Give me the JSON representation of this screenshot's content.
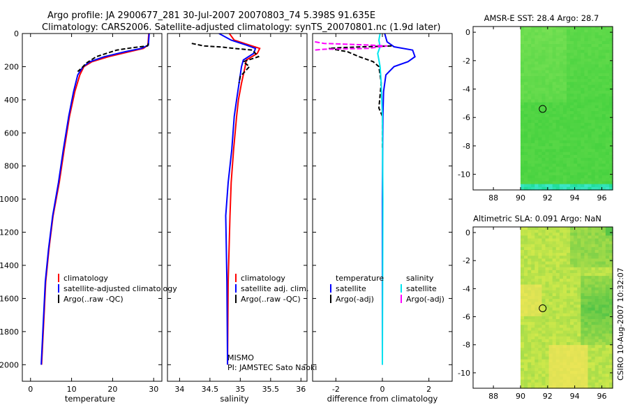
{
  "header": {
    "line1": "Argo profile: JA 2900677_281 30-Jul-2007 20070803_74 5.398S 91.635E",
    "line2": "Climatology: CARS2006. Satellite-adjusted climatology: synTS_20070801.nc (1.9d later)"
  },
  "credit": "CSIRO 10-Aug-2007 10:32:07",
  "colors": {
    "clim": "#ff0000",
    "sat": "#0000ff",
    "argo": "#000000",
    "sal_sat": "#00e5ee",
    "sal_argo": "#ff00ff"
  },
  "chart_data": [
    {
      "type": "line",
      "name": "temperature-profile",
      "xlabel": "temperature",
      "xlim": [
        -2,
        32
      ],
      "ylim": [
        0,
        2100
      ],
      "xticks": [
        0,
        10,
        20,
        30
      ],
      "yticks": [
        0,
        200,
        400,
        600,
        800,
        1000,
        1200,
        1400,
        1600,
        1800,
        2000
      ],
      "legend": [
        "climatology",
        "satellite-adjusted climatology",
        "Argo(..raw -QC)"
      ],
      "series": [
        {
          "name": "climatology",
          "color": "#ff0000",
          "x": [
            28.8,
            28.6,
            27.5,
            24,
            19,
            15,
            13,
            12,
            10.8,
            9.5,
            8.2,
            7,
            5.5,
            4.5,
            3.7,
            3.1,
            2.7
          ],
          "y": [
            0,
            70,
            90,
            110,
            140,
            170,
            200,
            250,
            350,
            500,
            700,
            900,
            1100,
            1300,
            1500,
            1800,
            2000
          ]
        },
        {
          "name": "satellite-adjusted climatology",
          "color": "#0000ff",
          "x": [
            28.9,
            28.7,
            27,
            23,
            18,
            14.5,
            12.8,
            11.5,
            10.5,
            9.3,
            8,
            6.8,
            5.4,
            4.4,
            3.6,
            3,
            2.6
          ],
          "y": [
            0,
            70,
            90,
            110,
            140,
            170,
            200,
            250,
            350,
            500,
            700,
            900,
            1100,
            1300,
            1500,
            1800,
            2000
          ]
        },
        {
          "name": "Argo(..raw -QC)",
          "color": "#000000",
          "x": [
            28.7,
            28.5,
            25,
            21,
            16,
            13.5,
            12.8,
            11.5
          ],
          "y": [
            60,
            75,
            85,
            100,
            140,
            180,
            200,
            230
          ]
        }
      ]
    },
    {
      "type": "line",
      "name": "salinity-profile",
      "xlabel": "salinity",
      "xlim": [
        33.8,
        36.1
      ],
      "ylim": [
        0,
        2100
      ],
      "xticks": [
        34,
        34.5,
        35,
        35.5,
        36
      ],
      "legend": [
        "climatology",
        "satellite adj. clim.",
        "Argo(..raw -QC)"
      ],
      "annotation": [
        "MISMO",
        "PI: JAMSTEC Sato Naoki"
      ],
      "series": [
        {
          "name": "climatology",
          "color": "#ff0000",
          "x": [
            34.82,
            34.9,
            35.15,
            35.32,
            35.28,
            35.1,
            35.08,
            35.02,
            34.97,
            34.94,
            34.89,
            34.85,
            34.83,
            34.8,
            34.79
          ],
          "y": [
            0,
            40,
            70,
            90,
            120,
            160,
            200,
            300,
            400,
            500,
            700,
            900,
            1100,
            1500,
            2000
          ]
        },
        {
          "name": "satellite adj. clim.",
          "color": "#0000ff",
          "x": [
            34.65,
            34.85,
            35.1,
            35.25,
            35.22,
            35.05,
            35.02,
            34.98,
            34.94,
            34.9,
            34.86,
            34.8,
            34.76,
            34.78,
            34.79
          ],
          "y": [
            0,
            40,
            70,
            90,
            120,
            160,
            200,
            300,
            400,
            500,
            700,
            900,
            1100,
            1500,
            2000
          ]
        },
        {
          "name": "Argo(..raw -QC)",
          "color": "#000000",
          "x": [
            34.2,
            34.4,
            34.7,
            34.85,
            35.2,
            35.3,
            35.05,
            35.15,
            35.1,
            35.0,
            34.98
          ],
          "y": [
            60,
            75,
            82,
            88,
            100,
            140,
            170,
            200,
            220,
            260,
            300
          ]
        }
      ]
    },
    {
      "type": "line",
      "name": "difference-from-climatology",
      "xlabel": "difference from climatology",
      "xlim": [
        -3,
        3
      ],
      "ylim": [
        0,
        2100
      ],
      "xticks": [
        -2,
        0,
        2
      ],
      "legend": [
        "temperature",
        "satellite",
        "Argo(-adj)",
        "salinity",
        "satellite",
        "Argo(-adj)"
      ],
      "series": [
        {
          "name": "temperature satellite",
          "color": "#0000ff",
          "x": [
            0.1,
            0.2,
            0.5,
            1.3,
            1.4,
            1.1,
            0.5,
            0.15,
            0.05,
            0.02,
            0.0,
            0.0
          ],
          "y": [
            0,
            50,
            80,
            100,
            140,
            170,
            200,
            250,
            350,
            500,
            1000,
            2000
          ]
        },
        {
          "name": "temperature Argo(-adj)",
          "color": "#000000",
          "x": [
            0.4,
            -0.8,
            -1.8,
            -2.3,
            -1.5,
            -1.0,
            -0.4,
            -0.15,
            -0.1,
            -0.05,
            -0.15,
            0.0,
            0.0
          ],
          "y": [
            75,
            80,
            85,
            90,
            110,
            140,
            170,
            200,
            250,
            300,
            450,
            500,
            700
          ]
        },
        {
          "name": "salinity satellite",
          "color": "#00e5ee",
          "x": [
            -0.1,
            -0.15,
            -0.1,
            -0.2,
            -0.15,
            -0.1,
            -0.05,
            0.0,
            0.02,
            0.0
          ],
          "y": [
            0,
            40,
            80,
            120,
            160,
            200,
            300,
            500,
            1000,
            2000
          ]
        },
        {
          "name": "salinity Argo(-adj)",
          "color": "#ff00ff",
          "x": [
            -2.9,
            -2.5,
            -1.5,
            -0.5,
            0.2,
            -0.1,
            -0.6,
            -2.5,
            -2.9
          ],
          "y": [
            50,
            60,
            65,
            70,
            75,
            80,
            90,
            95,
            100
          ]
        }
      ]
    },
    {
      "type": "heatmap",
      "name": "amsre-sst-map",
      "title": "AMSR-E SST: 28.4 Argo: 28.7",
      "xlim": [
        86.5,
        96.8
      ],
      "ylim": [
        -11.1,
        0.4
      ],
      "xticks": [
        88,
        90,
        92,
        94,
        96
      ],
      "yticks": [
        0,
        -2,
        -4,
        -6,
        -8,
        -10
      ],
      "data_x_start": 90,
      "marker": {
        "lon": 91.635,
        "lat": -5.398
      },
      "colors": [
        "#2fce3a",
        "#52d84a",
        "#77e354"
      ]
    },
    {
      "type": "heatmap",
      "name": "altimetric-sla-map",
      "title": "Altimetric SLA: 0.091 Argo: NaN",
      "xlim": [
        86.5,
        96.8
      ],
      "ylim": [
        -11.1,
        0.4
      ],
      "xticks": [
        88,
        90,
        92,
        94,
        96
      ],
      "yticks": [
        0,
        -2,
        -4,
        -6,
        -8,
        -10
      ],
      "data_x_start": 90,
      "marker": {
        "lon": 91.635,
        "lat": -5.398
      },
      "colors": [
        "#3cb54a",
        "#8fd54d",
        "#e2ee4e",
        "#f6e65a"
      ]
    }
  ]
}
